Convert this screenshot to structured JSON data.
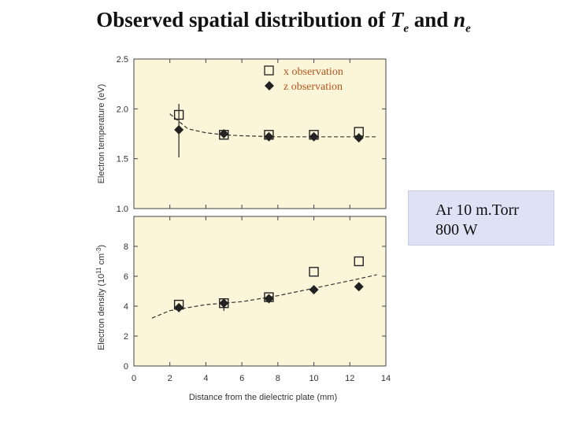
{
  "title": {
    "prefix": "Observed spatial distribution of ",
    "var1": "T",
    "sub1": "e",
    "middle": " and ",
    "var2": "n",
    "sub2": "e"
  },
  "info": {
    "line1": "Ar 10 m.Torr",
    "line2": "800 W"
  },
  "chart_data": [
    {
      "type": "scatter",
      "ylabel": "Electron temperature (eV)",
      "ylim": [
        1.0,
        2.5
      ],
      "yticks": [
        "1.0",
        "1.5",
        "2.0",
        "2.5"
      ],
      "xlim": [
        0,
        14
      ],
      "legend_placement": "top-right",
      "series": [
        {
          "name": "x observation",
          "marker": "open-square",
          "x": [
            2.5,
            5,
            7.5,
            10,
            12.5
          ],
          "y": [
            1.94,
            1.74,
            1.74,
            1.74,
            1.77
          ]
        },
        {
          "name": "z observation",
          "marker": "filled-diamond",
          "x": [
            2.5,
            5,
            7.5,
            10,
            12.5
          ],
          "y": [
            1.79,
            1.75,
            1.72,
            1.72,
            1.71
          ]
        }
      ],
      "fit": {
        "x": [
          2.0,
          3.0,
          4.0,
          5.0,
          6.0,
          8.0,
          10.0,
          12.0,
          13.5
        ],
        "y": [
          1.95,
          1.8,
          1.76,
          1.74,
          1.73,
          1.72,
          1.72,
          1.72,
          1.72
        ]
      }
    },
    {
      "type": "scatter",
      "ylabel": "Electron density (10^11 cm^-3)",
      "ylabel_parts": {
        "base": "Electron density (10",
        "sup": "11",
        "unit": " cm",
        "unit_sup": "-3",
        "end": ")"
      },
      "ylim": [
        0,
        10
      ],
      "yticks": [
        "0",
        "2",
        "4",
        "6",
        "8"
      ],
      "xlabel": "Distance from the dielectric plate (mm)",
      "xlim": [
        0,
        14
      ],
      "xticks": [
        "0",
        "2",
        "4",
        "6",
        "8",
        "10",
        "12",
        "14"
      ],
      "series": [
        {
          "name": "x observation",
          "marker": "open-square",
          "x": [
            2.5,
            5,
            7.5,
            10,
            12.5
          ],
          "y": [
            4.1,
            4.2,
            4.6,
            6.3,
            7.0
          ]
        },
        {
          "name": "z observation",
          "marker": "filled-diamond",
          "x": [
            2.5,
            5,
            7.5,
            10,
            12.5
          ],
          "y": [
            3.9,
            4.2,
            4.5,
            5.1,
            5.3
          ]
        }
      ],
      "fit": {
        "x": [
          1.0,
          2.0,
          4.0,
          6.0,
          8.0,
          10.0,
          12.0,
          13.5
        ],
        "y": [
          3.2,
          3.7,
          4.1,
          4.3,
          4.7,
          5.2,
          5.7,
          6.1
        ]
      }
    }
  ]
}
